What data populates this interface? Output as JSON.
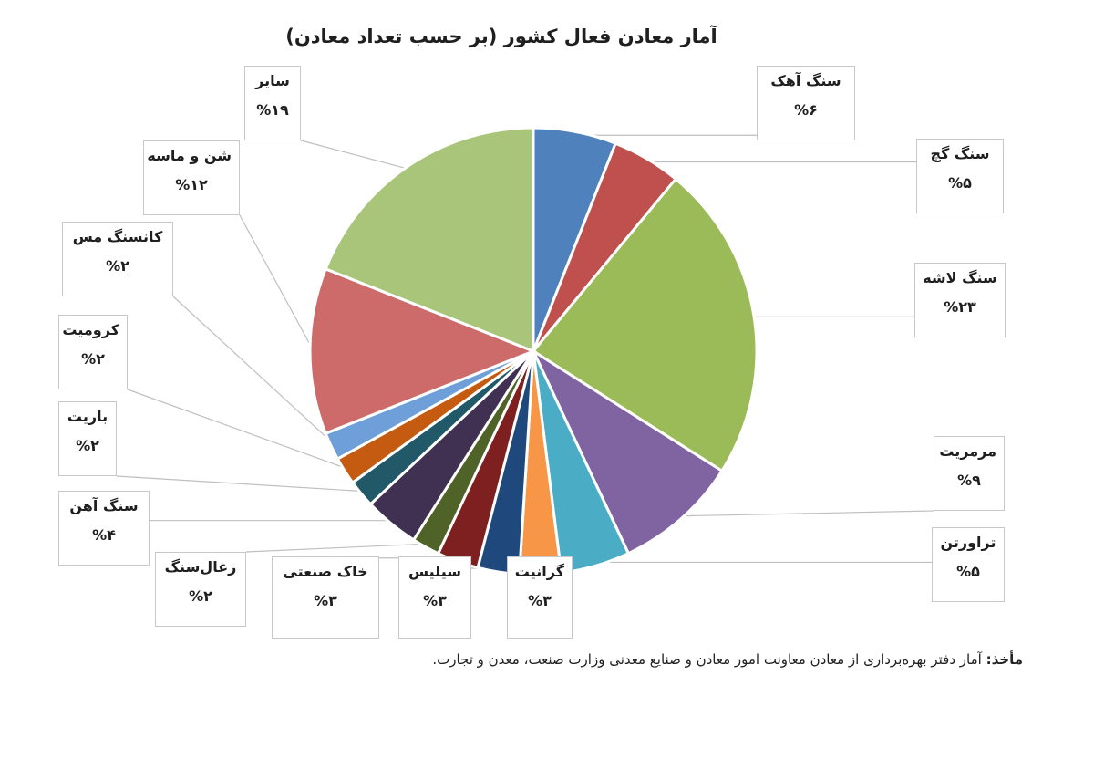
{
  "chart_data": {
    "type": "pie",
    "title": "آمار معادن فعال کشور (بر حسب تعداد معادن)",
    "slices": [
      {
        "label": "سنگ آهک",
        "pct_label": "%۶",
        "value": 6,
        "color": "#4f81bd"
      },
      {
        "label": "سنگ گچ",
        "pct_label": "%۵",
        "value": 5,
        "color": "#c0504d"
      },
      {
        "label": "سنگ لاشه",
        "pct_label": "%۲۳",
        "value": 23,
        "color": "#9bbb59"
      },
      {
        "label": "مرمریت",
        "pct_label": "%۹",
        "value": 9,
        "color": "#8064a2"
      },
      {
        "label": "تراورتن",
        "pct_label": "%۵",
        "value": 5,
        "color": "#4bacc6"
      },
      {
        "label": "گرانیت",
        "pct_label": "%۳",
        "value": 3,
        "color": "#f79646"
      },
      {
        "label": "سیلیس",
        "pct_label": "%۳",
        "value": 3,
        "color": "#1f497d"
      },
      {
        "label": "خاک صنعتی",
        "pct_label": "%۳",
        "value": 3,
        "color": "#7f2020"
      },
      {
        "label": "زغال‌سنگ",
        "pct_label": "%۲",
        "value": 2,
        "color": "#4f6228"
      },
      {
        "label": "سنگ آهن",
        "pct_label": "%۴",
        "value": 4,
        "color": "#403152"
      },
      {
        "label": "باریت",
        "pct_label": "%۲",
        "value": 2,
        "color": "#215968"
      },
      {
        "label": "کرومیت",
        "pct_label": "%۲",
        "value": 2,
        "color": "#c55a11"
      },
      {
        "label": "کانسنگ مس",
        "pct_label": "%۲",
        "value": 2,
        "color": "#6f9fd8"
      },
      {
        "label": "شن و ماسه",
        "pct_label": "%۱۲",
        "value": 12,
        "color": "#cd6b6a"
      },
      {
        "label": "سایر",
        "pct_label": "%۱۹",
        "value": 19,
        "color": "#a9c57a"
      }
    ]
  },
  "source": {
    "prefix": "مأخذ:",
    "text": "آمار دفتر بهره‌برداری از معادن معاونت امور معادن و صنایع معدنی وزارت صنعت، معدن و تجارت."
  }
}
